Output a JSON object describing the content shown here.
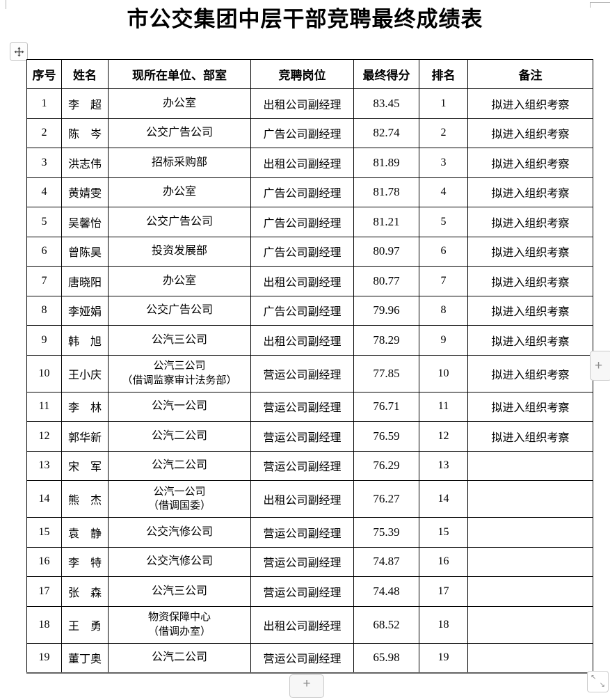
{
  "page": {
    "title": "市公交集团中层干部竞聘最终成绩表"
  },
  "controls": {
    "add_column_label": "+",
    "add_row_label": "+"
  },
  "table": {
    "headers": [
      "序号",
      "姓名",
      "现所在单位、部室",
      "竞聘岗位",
      "最终得分",
      "排名",
      "备注"
    ],
    "rows": [
      {
        "no": "1",
        "name": "李　超",
        "unit": "办公室",
        "position": "出租公司副经理",
        "score": "83.45",
        "rank": "1",
        "remark": "拟进入组织考察"
      },
      {
        "no": "2",
        "name": "陈　岑",
        "unit": "公交广告公司",
        "position": "广告公司副经理",
        "score": "82.74",
        "rank": "2",
        "remark": "拟进入组织考察"
      },
      {
        "no": "3",
        "name": "洪志伟",
        "unit": "招标采购部",
        "position": "出租公司副经理",
        "score": "81.89",
        "rank": "3",
        "remark": "拟进入组织考察"
      },
      {
        "no": "4",
        "name": "黄婧雯",
        "unit": "办公室",
        "position": "广告公司副经理",
        "score": "81.78",
        "rank": "4",
        "remark": "拟进入组织考察"
      },
      {
        "no": "5",
        "name": "吴馨怡",
        "unit": "公交广告公司",
        "position": "广告公司副经理",
        "score": "81.21",
        "rank": "5",
        "remark": "拟进入组织考察"
      },
      {
        "no": "6",
        "name": "曾陈昊",
        "unit": "投资发展部",
        "position": "广告公司副经理",
        "score": "80.97",
        "rank": "6",
        "remark": "拟进入组织考察"
      },
      {
        "no": "7",
        "name": "唐晓阳",
        "unit": "办公室",
        "position": "出租公司副经理",
        "score": "80.77",
        "rank": "7",
        "remark": "拟进入组织考察"
      },
      {
        "no": "8",
        "name": "李娅娟",
        "unit": "公交广告公司",
        "position": "广告公司副经理",
        "score": "79.96",
        "rank": "8",
        "remark": "拟进入组织考察"
      },
      {
        "no": "9",
        "name": "韩　旭",
        "unit": "公汽三公司",
        "position": "出租公司副经理",
        "score": "78.29",
        "rank": "9",
        "remark": "拟进入组织考察"
      },
      {
        "no": "10",
        "name": "王小庆",
        "unit": "公汽三公司\n（借调监察审计法务部）",
        "position": "营运公司副经理",
        "score": "77.85",
        "rank": "10",
        "remark": "拟进入组织考察"
      },
      {
        "no": "11",
        "name": "李　林",
        "unit": "公汽一公司",
        "position": "营运公司副经理",
        "score": "76.71",
        "rank": "11",
        "remark": "拟进入组织考察"
      },
      {
        "no": "12",
        "name": "郭华新",
        "unit": "公汽二公司",
        "position": "营运公司副经理",
        "score": "76.59",
        "rank": "12",
        "remark": "拟进入组织考察"
      },
      {
        "no": "13",
        "name": "宋　军",
        "unit": "公汽二公司",
        "position": "营运公司副经理",
        "score": "76.29",
        "rank": "13",
        "remark": ""
      },
      {
        "no": "14",
        "name": "熊　杰",
        "unit": "公汽一公司\n（借调国委）",
        "position": "出租公司副经理",
        "score": "76.27",
        "rank": "14",
        "remark": ""
      },
      {
        "no": "15",
        "name": "袁　静",
        "unit": "公交汽修公司",
        "position": "营运公司副经理",
        "score": "75.39",
        "rank": "15",
        "remark": ""
      },
      {
        "no": "16",
        "name": "李　特",
        "unit": "公交汽修公司",
        "position": "营运公司副经理",
        "score": "74.87",
        "rank": "16",
        "remark": ""
      },
      {
        "no": "17",
        "name": "张　森",
        "unit": "公汽三公司",
        "position": "营运公司副经理",
        "score": "74.48",
        "rank": "17",
        "remark": ""
      },
      {
        "no": "18",
        "name": "王　勇",
        "unit": "物资保障中心\n（借调办室）",
        "position": "出租公司副经理",
        "score": "68.52",
        "rank": "18",
        "remark": ""
      },
      {
        "no": "19",
        "name": "董丁奥",
        "unit": "公汽二公司",
        "position": "营运公司副经理",
        "score": "65.98",
        "rank": "19",
        "remark": ""
      }
    ]
  }
}
